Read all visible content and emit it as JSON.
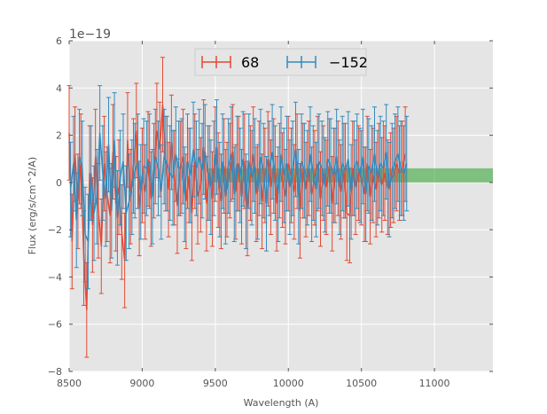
{
  "chart_data": {
    "type": "line",
    "title": "",
    "xlabel": "Wavelength (A)",
    "ylabel": "Flux (erg/s/cm^2/A)",
    "offset_text": "1e−19",
    "xlim": [
      8500,
      11400
    ],
    "ylim": [
      -8,
      6
    ],
    "xticks": [
      8500,
      9000,
      9500,
      10000,
      10500,
      11000
    ],
    "yticks": [
      -8,
      -6,
      -4,
      -2,
      0,
      2,
      4,
      6
    ],
    "xtick_labels": [
      "8500",
      "9000",
      "9500",
      "10000",
      "10500",
      "11000"
    ],
    "ytick_labels": [
      "−8",
      "−6",
      "−4",
      "−2",
      "0",
      "2",
      "4",
      "6"
    ],
    "grid": true,
    "legend_position": "top-center",
    "series": [
      {
        "name": "68",
        "color": "#e24a33",
        "x_start": 8500,
        "x_step": 20,
        "values": [
          2.1,
          -2.5,
          1.2,
          -0.8,
          0.9,
          -3.2,
          -5.4,
          0.4,
          -1.8,
          1.1,
          -1.2,
          -2.7,
          0.8,
          -0.5,
          -1.4,
          1.3,
          -0.9,
          -0.2,
          -2.1,
          -3.3,
          1.8,
          -0.6,
          0.7,
          2.2,
          -1.1,
          0.3,
          -0.4,
          1.0,
          -0.7,
          0.5,
          2.2,
          1.4,
          3.3,
          0.8,
          -0.3,
          1.7,
          0.2,
          -1.0,
          0.6,
          1.1,
          -0.8,
          0.3,
          -1.3,
          0.9,
          -0.6,
          -0.1,
          1.5,
          -0.9,
          0.4,
          -0.7,
          1.2,
          0.1,
          -0.8,
          0.7,
          -0.3,
          0.5,
          1.3,
          -0.4,
          0.8,
          -0.6,
          0.9,
          -1.1,
          0.4,
          1.2,
          -0.5,
          0.6,
          -0.8,
          0.3,
          1.0,
          -0.2,
          0.7,
          -0.9,
          0.5,
          0.1,
          -0.6,
          0.8,
          0.3,
          -0.4,
          0.9,
          -1.2,
          0.5,
          -0.3,
          0.6,
          -0.5,
          0.2,
          0.8,
          -0.7,
          0.4,
          -0.2,
          0.7,
          -0.9,
          0.3,
          0.6,
          -0.4,
          0.5,
          -1.3,
          -1.4,
          0.6,
          -0.2,
          0.4,
          0.2,
          -0.5,
          0.8,
          -0.6,
          0.3,
          -0.3,
          0.5,
          -0.1,
          0.4,
          -0.2,
          0.1,
          0.3,
          0.8,
          0.4,
          0.6,
          1.2
        ],
        "error": 2.0
      },
      {
        "name": "−152",
        "color": "#348abd",
        "x_start": 8510,
        "x_step": 20,
        "values": [
          -0.3,
          0.8,
          -1.6,
          1.1,
          0.6,
          -2.2,
          -2.5,
          0.4,
          -1.3,
          -0.6,
          2.1,
          0.4,
          -0.7,
          1.6,
          -1.2,
          1.8,
          -1.5,
          0.2,
          0.9,
          -1.3,
          -0.8,
          -0.2,
          0.5,
          0.9,
          -0.4,
          0.7,
          0.6,
          0.9,
          -0.6,
          1.1,
          0.6,
          -0.4,
          1.1,
          0.8,
          0.4,
          0.2,
          1.2,
          0.6,
          0.7,
          -0.5,
          0.9,
          0.3,
          1.4,
          0.6,
          1.1,
          0.5,
          1.3,
          0.4,
          -0.2,
          0.6,
          1.5,
          -0.3,
          0.9,
          -0.6,
          0.7,
          1.2,
          -0.5,
          0.8,
          0.3,
          1.0,
          -0.8,
          0.9,
          0.2,
          0.7,
          -0.4,
          1.1,
          0.5,
          -0.9,
          0.6,
          1.3,
          0.4,
          -0.5,
          1.2,
          0.3,
          0.8,
          -0.2,
          0.6,
          1.4,
          -0.6,
          0.9,
          0.5,
          0.2,
          1.2,
          0.4,
          -0.3,
          0.9,
          0.6,
          -0.1,
          1.0,
          0.7,
          0.3,
          1.1,
          -0.2,
          0.8,
          0.5,
          1.0,
          -0.4,
          0.6,
          0.9,
          0.3,
          1.1,
          -0.5,
          0.7,
          0.4,
          1.2,
          0.2,
          0.8,
          0.6,
          1.3,
          -0.3,
          0.5,
          0.9,
          1.2,
          0.6,
          0.4,
          0.8
        ],
        "error": 2.0
      }
    ],
    "shaded_region": {
      "x_range": [
        9450,
        11400
      ],
      "y_range": [
        0.0,
        0.6
      ],
      "color": "#2ca02c"
    }
  }
}
